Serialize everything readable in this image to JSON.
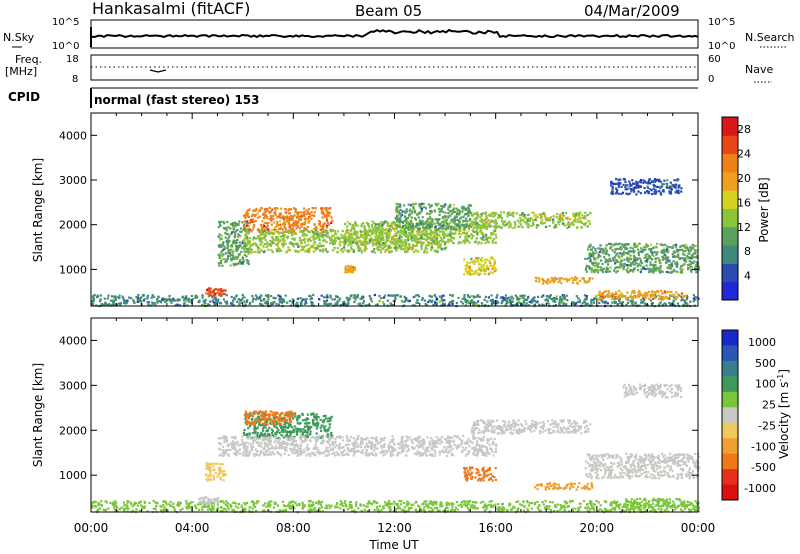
{
  "header": {
    "station": "Hankasalmi (fitACF)",
    "beam": "Beam 05",
    "date": "04/Mar/2009"
  },
  "status_panels": {
    "nsky_label": "N.Sky",
    "nsky_ticks": [
      "10^5",
      "10^0"
    ],
    "nsearch_label": "N.Search",
    "nsearch_ticks": [
      "10^5",
      "10^0"
    ],
    "freq_label_1": "Freq.",
    "freq_label_2": "[MHz]",
    "freq_ticks": [
      "18",
      "8"
    ],
    "nave_label": "Nave",
    "nave_ticks": [
      "60",
      "0"
    ],
    "cpid_label": "CPID",
    "cpid_text": "normal (fast stereo) 153"
  },
  "colors": {
    "power_scale": [
      "#1f2ad6",
      "#2a4cb0",
      "#3f8a78",
      "#5aa05e",
      "#8cc43a",
      "#d6d020",
      "#f0a020",
      "#f08018",
      "#e84818",
      "#d81818"
    ],
    "velocity_scale": [
      "#1a28c8",
      "#2a56b8",
      "#3a7e8e",
      "#3e9a5a",
      "#7ac63a",
      "#c8c8c4",
      "#f0c860",
      "#f0a030",
      "#f07818",
      "#e83018",
      "#d81010"
    ],
    "gray": "#c8c8c4"
  },
  "chart_data": [
    {
      "type": "heatmap",
      "ylabel": "Slant Range [km]",
      "yticks": [
        "1000",
        "2000",
        "3000",
        "4000"
      ],
      "ylim": [
        180,
        4500
      ],
      "xlim": [
        0,
        24
      ],
      "colorbar": {
        "label": "Power [dB]",
        "ticks": [
          "4",
          "8",
          "12",
          "16",
          "20",
          "24",
          "28"
        ],
        "range": [
          0,
          30
        ]
      },
      "regions": [
        {
          "start": 0.0,
          "end": 24.0,
          "low": 200,
          "high": 450,
          "value": 6
        },
        {
          "start": 4.5,
          "end": 5.3,
          "low": 430,
          "high": 600,
          "value": 26
        },
        {
          "start": 6.0,
          "end": 9.5,
          "low": 1850,
          "high": 2400,
          "value": 22
        },
        {
          "start": 5.0,
          "end": 6.2,
          "low": 1100,
          "high": 2100,
          "value": 9
        },
        {
          "start": 6.0,
          "end": 14.0,
          "low": 1400,
          "high": 1900,
          "value": 14
        },
        {
          "start": 10.0,
          "end": 16.0,
          "low": 1600,
          "high": 2100,
          "value": 13
        },
        {
          "start": 12.0,
          "end": 15.0,
          "low": 1900,
          "high": 2500,
          "value": 10
        },
        {
          "start": 15.0,
          "end": 19.7,
          "low": 1950,
          "high": 2300,
          "value": 12
        },
        {
          "start": 14.7,
          "end": 16.0,
          "low": 900,
          "high": 1300,
          "value": 16
        },
        {
          "start": 10.0,
          "end": 10.4,
          "low": 950,
          "high": 1100,
          "value": 20
        },
        {
          "start": 17.5,
          "end": 19.8,
          "low": 700,
          "high": 850,
          "value": 20
        },
        {
          "start": 20.0,
          "end": 23.5,
          "low": 350,
          "high": 550,
          "value": 18
        },
        {
          "start": 19.5,
          "end": 24.0,
          "low": 950,
          "high": 1600,
          "value": 9
        },
        {
          "start": 20.5,
          "end": 23.3,
          "low": 2700,
          "high": 3050,
          "value": 5
        }
      ]
    },
    {
      "type": "heatmap",
      "ylabel": "Slant Range [km]",
      "yticks": [
        "1000",
        "2000",
        "3000",
        "4000"
      ],
      "ylim": [
        180,
        4500
      ],
      "xlim": [
        0,
        24
      ],
      "xticks": [
        "00:00",
        "04:00",
        "08:00",
        "12:00",
        "16:00",
        "20:00",
        "00:00"
      ],
      "xlabel": "Time UT",
      "colorbar": {
        "label": "Velocity [m s",
        "label_sup": "-1",
        "label_end": "]",
        "ticks": [
          "-1000",
          "-500",
          "-100",
          "-25",
          "25",
          "100",
          "500",
          "1000"
        ]
      },
      "regions": [
        {
          "start": 0.0,
          "end": 24.0,
          "low": 200,
          "high": 450,
          "color_index": 4
        },
        {
          "start": 6.0,
          "end": 9.5,
          "low": 1850,
          "high": 2400,
          "color_index": 3
        },
        {
          "start": 6.0,
          "end": 8.0,
          "low": 2150,
          "high": 2450,
          "color_index": 8
        },
        {
          "start": 5.0,
          "end": 16.0,
          "low": 1450,
          "high": 1900,
          "color_index": 5
        },
        {
          "start": 15.0,
          "end": 19.7,
          "low": 1950,
          "high": 2250,
          "color_index": 5
        },
        {
          "start": 4.5,
          "end": 5.3,
          "low": 900,
          "high": 1300,
          "color_index": 6
        },
        {
          "start": 14.7,
          "end": 16.0,
          "low": 900,
          "high": 1200,
          "color_index": 8
        },
        {
          "start": 17.5,
          "end": 19.8,
          "low": 700,
          "high": 850,
          "color_index": 7
        },
        {
          "start": 19.5,
          "end": 24.0,
          "low": 950,
          "high": 1500,
          "color_index": 5
        },
        {
          "start": 21.0,
          "end": 23.5,
          "low": 300,
          "high": 500,
          "color_index": 4
        },
        {
          "start": 4.2,
          "end": 5.0,
          "low": 350,
          "high": 550,
          "color_index": 5
        },
        {
          "start": 21.0,
          "end": 23.3,
          "low": 2750,
          "high": 3050,
          "color_index": 5
        }
      ]
    }
  ]
}
